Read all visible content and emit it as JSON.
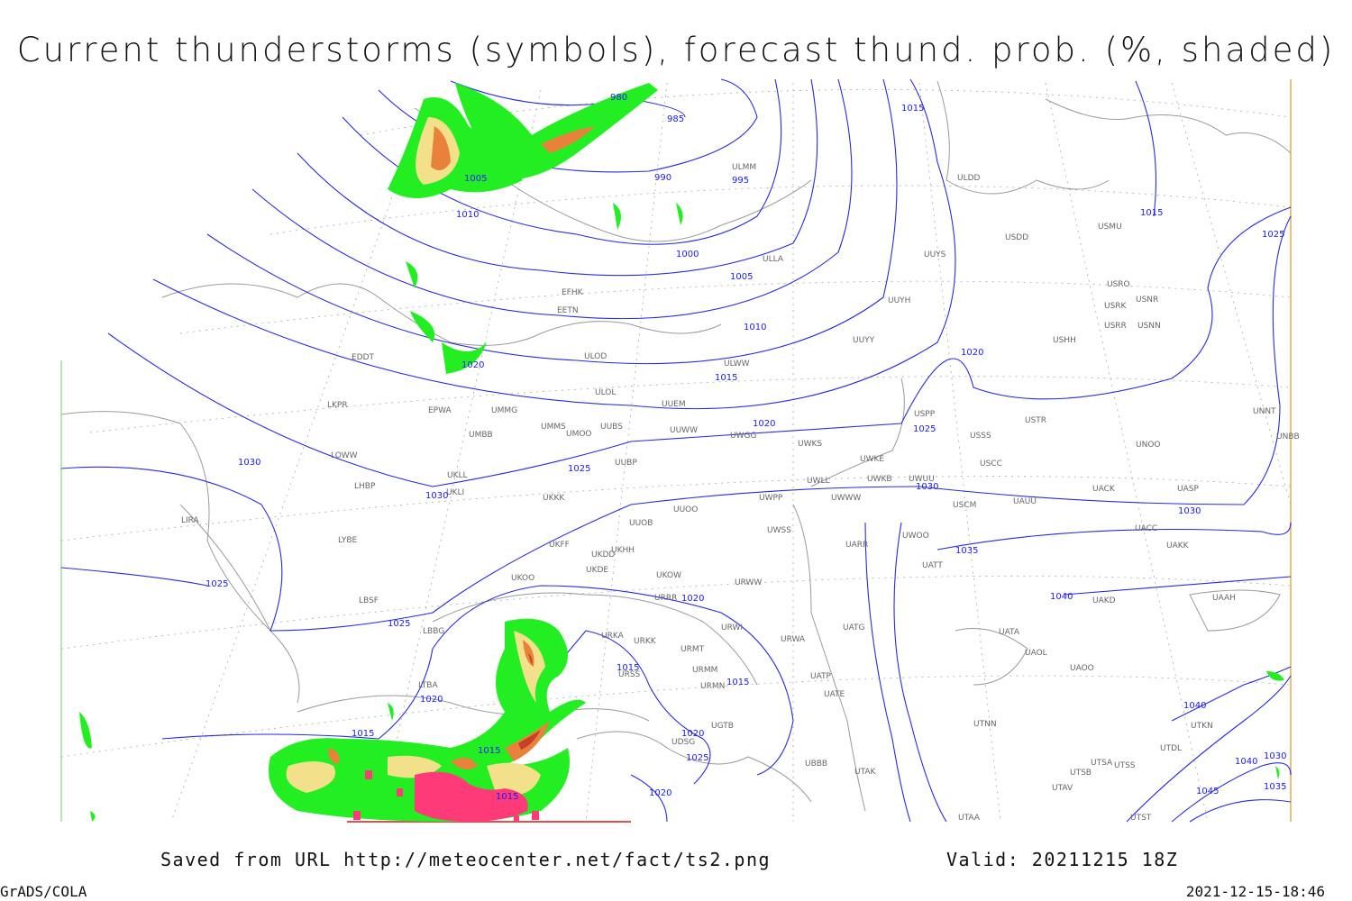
{
  "title": "Current thunderstorms (symbols), forecast thund. prob. (%, shaded)",
  "footer": {
    "source": "Saved from URL http://meteocenter.net/fact/ts2.png",
    "valid": "Valid: 20211215 18Z",
    "software": "GrADS/COLA",
    "timestamp": "2021-12-15-18:46"
  },
  "stations": [
    "ULMM",
    "ULDD",
    "USDD",
    "USMU",
    "ULLA",
    "EFHK",
    "EETN",
    "UUYS",
    "USRO",
    "USRK",
    "USNR",
    "USRR",
    "USNN",
    "UUYH",
    "USHH",
    "ULOD",
    "ULWW",
    "UUYY",
    "EDDT",
    "ULOL",
    "UUEM",
    "UMMG",
    "EPWA",
    "LKPR",
    "UMMS",
    "UMOO",
    "UUBS",
    "UUWW",
    "UWGG",
    "UWKS",
    "USPP",
    "USTR",
    "USSS",
    "UNNT",
    "UNBB",
    "UNOO",
    "UMBB",
    "LOWW",
    "UWKE",
    "USCC",
    "UKLL",
    "UUBP",
    "UWLL",
    "UWKB",
    "UWUU",
    "UACK",
    "UASP",
    "UKLI",
    "LHBP",
    "UKKK",
    "UWPP",
    "UWWW",
    "USCM",
    "UAUU",
    "UUOO",
    "LIRA",
    "UUOB",
    "UACC",
    "UWSS",
    "UARR",
    "UWOO",
    "UAKK",
    "LYBE",
    "UKHH",
    "UKDD",
    "UKFF",
    "UKOO",
    "UKDE",
    "UKOW",
    "URWW",
    "UATT",
    "LBSF",
    "URRR",
    "UAKD",
    "UAAH",
    "LBBG",
    "URWI",
    "UATG",
    "UATA",
    "URKA",
    "URKK",
    "URMT",
    "URWA",
    "UAOL",
    "URSS",
    "URMM",
    "UAOO",
    "UATP",
    "URMN",
    "UATE",
    "LTBA",
    "UTNN",
    "UTSA",
    "UTSS",
    "UTSB",
    "UTAV",
    "UTST",
    "UTAA",
    "UTAK",
    "UBBB",
    "UGTB",
    "UDSG",
    "UTDL",
    "UTKN"
  ],
  "isobar_labels": [
    980,
    985,
    990,
    995,
    1005,
    1010,
    1000,
    1005,
    1010,
    1015,
    1015,
    1025,
    1020,
    1015,
    1020,
    1020,
    1025,
    1030,
    1025,
    1030,
    1030,
    1030,
    1035,
    1025,
    1025,
    1020,
    1040,
    1015,
    1015,
    1020,
    1015,
    1015,
    1020,
    1025,
    1015,
    1020,
    1040,
    1030,
    1040,
    1045,
    1035
  ]
}
